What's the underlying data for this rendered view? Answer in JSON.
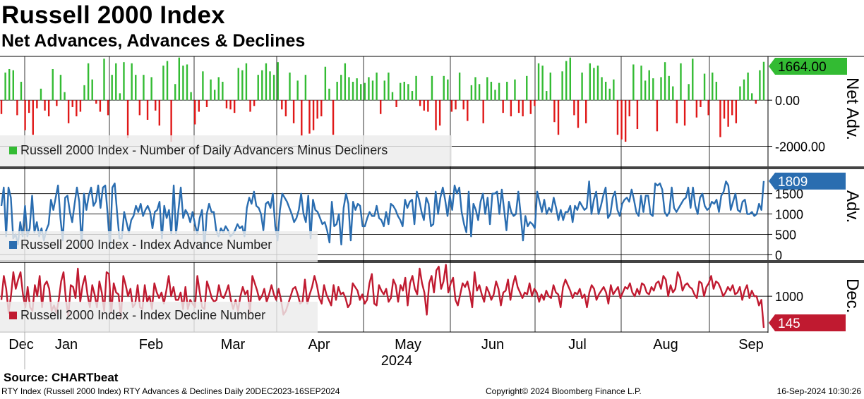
{
  "title": "Russell 2000 Index",
  "subtitle": "Net Advances, Advances & Declines",
  "source": "Source: CHARTbeat",
  "footer": {
    "left": "RTY Index (Russell 2000 Index) RTY Advances & Declines  Daily 20DEC2023-16SEP2024",
    "middle": "Copyright© 2024 Bloomberg Finance L.P.",
    "right": "16-Sep-2024 10:30:26"
  },
  "colors": {
    "net_up": "#33bb33",
    "net_down": "#e01818",
    "advances": "#2a6db0",
    "declines": "#c01a30",
    "grid": "#000000",
    "legend_bg": "#ececec"
  },
  "chart_data": [
    {
      "type": "bar",
      "panel": "Net Adv.",
      "title": "Net Adv.",
      "legend": "Russell 2000 Index - Number of Daily Advancers Minus Decliners",
      "yticks": [
        "0.00",
        "-2000.00"
      ],
      "ytick_values": [
        0,
        -2000
      ],
      "ylim": [
        -2900,
        1900
      ],
      "last_value_label": "1664.00",
      "last_value": 1664,
      "values": [
        -600,
        1200,
        1350,
        1300,
        -650,
        800,
        -1300,
        -550,
        -1500,
        -350,
        500,
        -450,
        -700,
        1350,
        -250,
        1100,
        350,
        -1000,
        -300,
        -700,
        -500,
        650,
        1600,
        900,
        -150,
        -500,
        1800,
        -650,
        1100,
        1600,
        300,
        1650,
        -1650,
        1600,
        1100,
        -650,
        1100,
        -850,
        1000,
        -450,
        -1100,
        1500,
        1700,
        -1800,
        700,
        1850,
        1500,
        1550,
        350,
        -1050,
        -500,
        1250,
        -300,
        900,
        450,
        1000,
        800,
        -350,
        -400,
        -550,
        1400,
        1300,
        1600,
        -500,
        -250,
        1100,
        1300,
        1600,
        1250,
        1100,
        1650,
        -400,
        -700,
        1200,
        -1000,
        850,
        -1550,
        1100,
        -1450,
        -1300,
        -800,
        -700,
        1450,
        500,
        -1500,
        800,
        1100,
        1600,
        1000,
        800,
        950,
        700,
        750,
        1000,
        850,
        1200,
        -600,
        850,
        1200,
        350,
        -300,
        750,
        800,
        700,
        400,
        1050,
        -250,
        -450,
        -500,
        1050,
        -1300,
        -1100,
        1050,
        900,
        -500,
        -400,
        1200,
        -400,
        -900,
        650,
        1000,
        700,
        -1000,
        1000,
        800,
        450,
        750,
        -550,
        800,
        -700,
        900,
        -550,
        -700,
        1050,
        -600,
        -250,
        1600,
        1500,
        400,
        1200,
        -950,
        -1500,
        1250,
        1700,
        1850,
        -650,
        -1200,
        1200,
        -1000,
        1600,
        1400,
        1500,
        1000,
        800,
        500,
        900,
        -1500,
        -1700,
        -1800,
        -700,
        1550,
        -1250,
        1500,
        850,
        1300,
        950,
        -1350,
        1000,
        1650,
        1050,
        600,
        -1000,
        1600,
        -1100,
        700,
        1800,
        -750,
        -300,
        1150,
        -650,
        1200,
        800,
        -1600,
        -800,
        -1150,
        -650,
        -1000,
        600,
        900,
        1200,
        300,
        -150,
        1300,
        1664
      ]
    },
    {
      "type": "line",
      "panel": "Adv.",
      "title": "Adv.",
      "legend": "Russell 2000 Index - Index Advance Number",
      "yticks": [
        "1500",
        "1000",
        "500",
        "0"
      ],
      "ytick_values": [
        1500,
        1000,
        500,
        0
      ],
      "ylim": [
        -150,
        2100
      ],
      "last_value_label": "1809",
      "last_value": 1809,
      "x_range": [
        "2023-12-20",
        "2024-09-16"
      ],
      "values": [
        1200,
        1650,
        450,
        1650,
        1400,
        400,
        500,
        250,
        800,
        450,
        1200,
        450,
        650,
        1450,
        550,
        800,
        450,
        650,
        350,
        600,
        750,
        1350,
        1100,
        1400,
        1700,
        900,
        350,
        1400,
        1450,
        1050,
        800,
        1250,
        1650,
        1300,
        200,
        1500,
        1100,
        1450,
        1650,
        1200,
        1300,
        1700,
        1150,
        1650,
        1700,
        1000,
        150,
        1650,
        1750,
        1050,
        400,
        400,
        1050,
        800,
        550,
        850,
        950,
        1200,
        1050,
        1250,
        950,
        1100,
        1200,
        1050,
        650,
        1050,
        1100,
        1300,
        400,
        1200,
        900,
        1100,
        500,
        1700,
        500,
        1100,
        1650,
        900,
        1100,
        1000,
        800,
        1050,
        750,
        500,
        900,
        1100,
        150,
        1000,
        1250,
        1050,
        1050,
        600,
        450,
        650,
        550,
        700,
        600,
        450,
        500,
        600,
        750,
        650,
        700,
        450,
        1150,
        1400,
        1250,
        1550,
        1200,
        1150,
        1000,
        600,
        1250,
        1300,
        1150,
        1500,
        700,
        350,
        1100,
        1500,
        1400,
        1300,
        1150,
        1000,
        800,
        900,
        1100,
        1500,
        1000,
        800,
        1450,
        400,
        1350,
        1100,
        1050,
        900,
        750,
        800,
        600,
        300,
        1300,
        700,
        750,
        1000,
        250,
        1150,
        1500,
        1250,
        350,
        1300,
        1100,
        1250,
        1200,
        700,
        700,
        900,
        1050,
        950,
        950,
        1200,
        900,
        850,
        700,
        1050,
        750,
        1250,
        1200,
        1100,
        950,
        850,
        700,
        1350,
        1150,
        1300,
        1350,
        750,
        1550,
        1350,
        1050,
        850,
        1400,
        1250,
        700,
        750,
        1550,
        1000,
        1400,
        1650,
        1350,
        950,
        1450,
        1100,
        1700,
        1500,
        1650,
        1050,
        750,
        550,
        1550,
        450,
        1250,
        1100,
        850,
        1300,
        1500,
        1000,
        1400,
        750,
        1500,
        1500,
        1550,
        1000,
        1600,
        1100,
        600,
        1300,
        1050,
        950,
        1000,
        1550,
        1000,
        350,
        950,
        700,
        800,
        750,
        650,
        1550,
        1300,
        1050,
        1350,
        1000,
        1150,
        1050,
        1400,
        1150,
        850,
        1100,
        850,
        1050,
        1050,
        1200,
        800,
        1200,
        1100,
        1300,
        1200,
        1100,
        1150,
        1800,
        1000,
        1350,
        1550,
        1000,
        1200,
        1450,
        1650,
        900,
        1000,
        1400,
        1550,
        1100,
        950,
        1250,
        1350,
        1400,
        1300,
        1600,
        1350,
        1050,
        950,
        1450,
        1050,
        1450,
        1450,
        1000,
        950,
        1750,
        1700,
        1750,
        1600,
        1050,
        950,
        1050,
        1650,
        1150,
        1050,
        1150,
        1250,
        1350,
        1400,
        1650,
        1150,
        1650,
        1200,
        1000,
        1400,
        1500,
        1200,
        1100,
        1150,
        1300,
        1250,
        1350,
        1050,
        1450,
        1550,
        1800,
        1700,
        1100,
        1300,
        1500,
        1100,
        1050,
        1300,
        1350,
        1000,
        1000,
        1050,
        950,
        1000,
        1250,
        1100,
        1809
      ]
    },
    {
      "type": "line",
      "panel": "Dec.",
      "title": "Dec.",
      "legend": "Russell 2000 Index - Index Decline Number",
      "yticks": [
        "1000"
      ],
      "ytick_values": [
        1000
      ],
      "ylim": [
        50,
        1900
      ],
      "last_value_label": "145",
      "last_value": 145,
      "values": [
        900,
        1550,
        1200,
        550,
        1000,
        1650,
        1200,
        1450,
        1650,
        1050,
        700,
        1250,
        700,
        600,
        1300,
        1000,
        1550,
        700,
        1300,
        1400,
        1200,
        600,
        750,
        550,
        900,
        1400,
        1650,
        900,
        450,
        1300,
        1250,
        950,
        1750,
        850,
        1300,
        1550,
        1050,
        700,
        1300,
        1050,
        700,
        1400,
        1100,
        600,
        1650,
        1600,
        550,
        1350,
        1100,
        1050,
        400,
        1550,
        1300,
        1000,
        1200,
        700,
        800,
        1300,
        700,
        650,
        1300,
        850,
        1000,
        650,
        1350,
        1100,
        950,
        1100,
        800,
        1150,
        1550,
        1000,
        1250,
        900,
        900,
        1100,
        650,
        1250,
        650,
        900,
        800,
        700,
        1550,
        1100,
        700,
        650,
        1400,
        1200,
        950,
        850,
        900,
        1300,
        1000,
        950,
        1100,
        1300,
        900,
        650,
        900,
        600,
        1000,
        1250,
        1050,
        1150,
        550,
        1550,
        1350,
        1150,
        900,
        1000,
        1200,
        850,
        1050,
        1300,
        1050,
        900,
        1200,
        900,
        500,
        600,
        800,
        1000,
        1200,
        1250,
        1050,
        800,
        850,
        1450,
        800,
        1050,
        1250,
        1550,
        1300,
        950,
        800,
        1300,
        1050,
        900,
        750,
        1300,
        900,
        1250,
        1050,
        1100,
        950,
        700,
        800,
        1350,
        1250,
        1150,
        900,
        1050,
        800,
        900,
        1350,
        1600,
        800,
        750,
        1300,
        1150,
        1050,
        1200,
        850,
        950,
        1450,
        1300,
        850,
        1300,
        1150,
        1500,
        750,
        1350,
        1550,
        1200,
        1050,
        1750,
        1350,
        1100,
        500,
        1350,
        1550,
        1100,
        1700,
        1800,
        1200,
        1400,
        1850,
        1100,
        1350,
        1500,
        900,
        750,
        1050,
        1350,
        1250,
        1400,
        1100,
        700,
        1650,
        1150,
        1300,
        1050,
        850,
        1250,
        1100,
        900,
        1050,
        1400,
        1200,
        750,
        1100,
        1150,
        1450,
        900,
        1300,
        1550,
        1250,
        1100,
        950,
        1100,
        1050,
        1350,
        1000,
        1200,
        1100,
        850,
        1050,
        900,
        1150,
        1000,
        950,
        1300,
        1100,
        1050,
        700,
        1250,
        1450,
        1300,
        1150,
        950,
        1100,
        1050,
        1200,
        950,
        1050,
        700,
        1100,
        1300,
        1200,
        900,
        1050,
        1150,
        1250,
        1100,
        800,
        1300,
        1050,
        1150,
        1250,
        950,
        1100,
        1250,
        1200,
        1350,
        1100,
        1000,
        1200,
        1050,
        1350,
        1300,
        1100,
        1050,
        1250,
        1150,
        1350,
        1400,
        1200,
        1550,
        1450,
        1000,
        1300,
        1100,
        1200,
        1650,
        1500,
        1150,
        1300,
        1350,
        1250,
        1200,
        1050,
        950,
        1400,
        1350,
        1000,
        1250,
        1350,
        1550,
        1200,
        1400,
        1350,
        1200,
        1000,
        1100,
        1250,
        1150,
        1300,
        1050,
        1100,
        1250,
        900,
        1150,
        1300,
        950,
        1150,
        1000,
        1000,
        750,
        900,
        145
      ]
    }
  ],
  "x_axis": {
    "months": [
      "Dec",
      "Jan",
      "Feb",
      "Mar",
      "Apr",
      "May",
      "Jun",
      "Jul",
      "Aug",
      "Sep"
    ],
    "year": "2024"
  }
}
